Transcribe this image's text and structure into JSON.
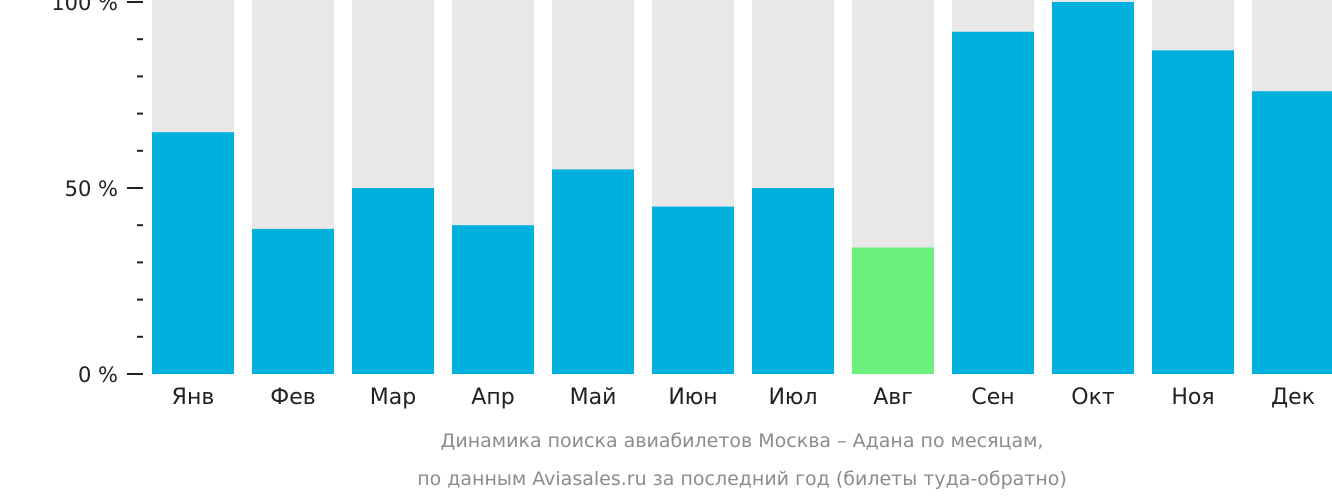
{
  "chart_data": {
    "type": "bar",
    "categories": [
      "Янв",
      "Фев",
      "Мар",
      "Апр",
      "Май",
      "Июн",
      "Июл",
      "Авг",
      "Сен",
      "Окт",
      "Ноя",
      "Дек"
    ],
    "values": [
      65,
      39,
      50,
      40,
      55,
      45,
      50,
      34,
      92,
      100,
      87,
      76
    ],
    "ylim": [
      0,
      100
    ],
    "yticks": [
      "0 %",
      "50 %",
      "100 %"
    ],
    "highlight_index": 7,
    "colors": {
      "bar": "#00b0dd",
      "highlight": "#6cf17f",
      "background": "#e8e8e8",
      "axis": "#222222"
    }
  },
  "caption": {
    "line1": "Динамика поиска авиабилетов Москва – Адана по месяцам,",
    "line2": "по данным Aviasales.ru за последний год (билеты туда-обратно)"
  }
}
